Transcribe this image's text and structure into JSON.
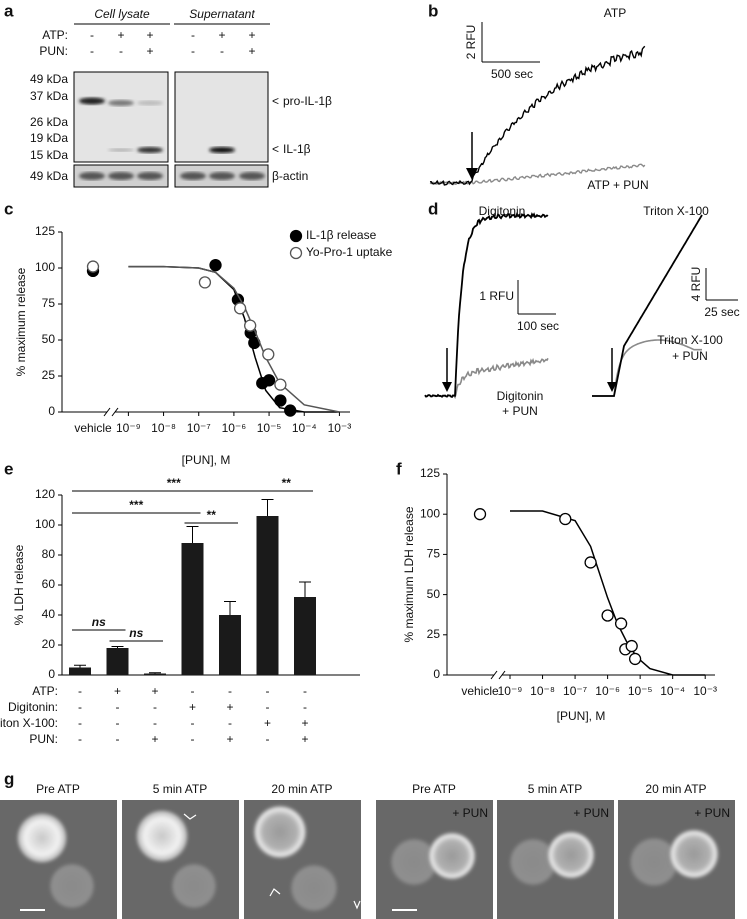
{
  "panel_labels": [
    "a",
    "b",
    "c",
    "d",
    "e",
    "f",
    "g"
  ],
  "blot": {
    "groups": [
      "Cell lysate",
      "Supernatant"
    ],
    "rows": [
      {
        "label": "ATP:",
        "signs": [
          "-",
          "+",
          "+",
          "-",
          "+",
          "+"
        ]
      },
      {
        "label": "PUN:",
        "signs": [
          "-",
          "-",
          "+",
          "-",
          "-",
          "+"
        ]
      }
    ],
    "markers": [
      "49 kDa",
      "37 kDa",
      "26 kDa",
      "19 kDa",
      "15 kDa"
    ],
    "actin_marker": "49 kDa",
    "bands": [
      "pro-IL-1β",
      "IL-1β"
    ],
    "loading": "β-actin"
  },
  "trace_b": {
    "top": "ATP",
    "bottom": "ATP + PUN",
    "y_scale": "2 RFU",
    "x_scale": "500 sec"
  },
  "trace_d": [
    {
      "top": "Digitonin",
      "bottom": [
        "Digitonin",
        "+ PUN"
      ],
      "y_scale": "1 RFU",
      "x_scale": "100 sec"
    },
    {
      "top": "Triton X-100",
      "bottom": [
        "Triton X-100",
        "+ PUN"
      ],
      "y_scale": "4 RFU",
      "x_scale": "25 sec"
    }
  ],
  "chart_data": [
    {
      "type": "scatter",
      "x_scale": "log",
      "ylabel": "% maximum release",
      "xlabel": "[PUN], M",
      "vehicle_label": "vehicle",
      "xlim": [
        3e-10,
        0.002
      ],
      "ylim": [
        0,
        125
      ],
      "yticks": [
        0,
        25,
        50,
        75,
        100,
        125
      ],
      "xticks": [
        {
          "value": 1e-09,
          "label": "10⁻⁹"
        },
        {
          "value": 1e-08,
          "label": "10⁻⁸"
        },
        {
          "value": 1e-07,
          "label": "10⁻⁷"
        },
        {
          "value": 1e-06,
          "label": "10⁻⁶"
        },
        {
          "value": 1e-05,
          "label": "10⁻⁵"
        },
        {
          "value": 0.0001,
          "label": "10⁻⁴"
        },
        {
          "value": 0.001,
          "label": "10⁻³"
        }
      ],
      "legend": "upper right",
      "series": [
        {
          "name": "IL-1β release",
          "color": "#000000",
          "marker": "filled",
          "vehicle": 98,
          "x": [
            3e-07,
            1.3e-06,
            3e-06,
            3.8e-06,
            6.4e-06,
            1e-05,
            2.1e-05,
            4e-05
          ],
          "values": [
            102,
            78,
            55,
            48,
            20,
            22,
            8,
            1
          ],
          "fit_x": [
            1e-09,
            1e-08,
            1e-07,
            3e-07,
            1e-06,
            2e-06,
            4e-06,
            8e-06,
            2e-05,
            0.0001,
            0.001
          ],
          "fit": [
            101,
            101,
            100,
            97,
            85,
            65,
            38,
            15,
            3,
            0,
            0
          ]
        },
        {
          "name": "Yo-Pro-1 uptake",
          "color": "#555555",
          "marker": "open",
          "vehicle": 101,
          "x": [
            1.5e-07,
            1.5e-06,
            2.9e-06,
            9.5e-06,
            2.1e-05
          ],
          "values": [
            90,
            72,
            60,
            40,
            19
          ],
          "fit_x": [
            1e-09,
            1e-08,
            1e-07,
            3e-07,
            1e-06,
            2e-06,
            4e-06,
            8e-06,
            2e-05,
            0.0001,
            0.001
          ],
          "fit": [
            101,
            101,
            100,
            97,
            86,
            73,
            56,
            38,
            20,
            5,
            0
          ]
        }
      ]
    },
    {
      "type": "bar",
      "ylabel": "% LDH release",
      "ylim": [
        0,
        120
      ],
      "yticks": [
        0,
        20,
        40,
        60,
        80,
        100,
        120
      ],
      "color": "#1a1a1a",
      "values": [
        5,
        18,
        1,
        88,
        40,
        106,
        52
      ],
      "errors": [
        1.5,
        1,
        0.5,
        11,
        9,
        11,
        10
      ],
      "rows": [
        {
          "label": "ATP:",
          "signs": [
            "-",
            "+",
            "+",
            "-",
            "-",
            "-",
            "-"
          ]
        },
        {
          "label": "Digitonin:",
          "signs": [
            "-",
            "-",
            "-",
            "+",
            "+",
            "-",
            "-"
          ]
        },
        {
          "label": "Triton X-100:",
          "signs": [
            "-",
            "-",
            "-",
            "-",
            "-",
            "+",
            "+"
          ]
        },
        {
          "label": "PUN:",
          "signs": [
            "-",
            "-",
            "+",
            "-",
            "+",
            "-",
            "+"
          ]
        }
      ],
      "annotations": [
        {
          "from": 0,
          "to": 1,
          "label": "ns"
        },
        {
          "from": 1,
          "to": 2,
          "label": "ns"
        },
        {
          "from": 0,
          "to": 3,
          "label": "***"
        },
        {
          "from": 3,
          "to": 4,
          "label": "**"
        },
        {
          "from": 0,
          "to": 5,
          "label": "***"
        },
        {
          "from": 5,
          "to": 6,
          "label": "**"
        }
      ]
    },
    {
      "type": "scatter",
      "x_scale": "log",
      "ylabel": "% maximum LDH release",
      "xlabel": "[PUN], M",
      "vehicle_label": "vehicle",
      "xlim": [
        3e-10,
        0.002
      ],
      "ylim": [
        0,
        125
      ],
      "yticks": [
        0,
        25,
        50,
        75,
        100,
        125
      ],
      "xticks": [
        {
          "value": 1e-09,
          "label": "10⁻⁹"
        },
        {
          "value": 1e-08,
          "label": "10⁻⁸"
        },
        {
          "value": 1e-07,
          "label": "10⁻⁷"
        },
        {
          "value": 1e-06,
          "label": "10⁻⁶"
        },
        {
          "value": 1e-05,
          "label": "10⁻⁵"
        },
        {
          "value": 0.0001,
          "label": "10⁻⁴"
        },
        {
          "value": 0.001,
          "label": "10⁻³"
        }
      ],
      "series": [
        {
          "color": "#000000",
          "marker": "open",
          "vehicle": 100,
          "x": [
            5e-08,
            3e-07,
            1e-06,
            2.6e-06,
            3.5e-06,
            5.5e-06,
            7e-06
          ],
          "values": [
            97,
            70,
            37,
            32,
            16,
            18,
            10
          ],
          "fit_x": [
            1e-09,
            1e-08,
            1e-07,
            3e-07,
            1e-06,
            2e-06,
            4e-06,
            8e-06,
            2e-05,
            0.0001,
            0.001
          ],
          "fit": [
            102,
            102,
            96,
            80,
            48,
            32,
            20,
            11,
            4,
            0,
            0
          ]
        }
      ]
    }
  ],
  "micrographs": [
    {
      "title": "Pre ATP"
    },
    {
      "title": "5 min ATP"
    },
    {
      "title": "20 min ATP"
    },
    {
      "title": "Pre ATP",
      "note": "+ PUN"
    },
    {
      "title": "5 min ATP",
      "note": "+ PUN"
    },
    {
      "title": "20 min ATP",
      "note": "+ PUN"
    }
  ]
}
